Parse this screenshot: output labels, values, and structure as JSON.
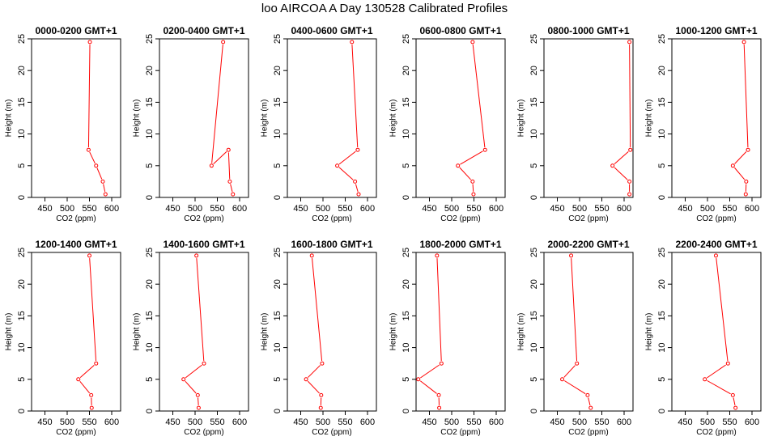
{
  "title": "loo AIRCOA A  Day 130528  Calibrated Profiles",
  "chart_data": [
    {
      "type": "line",
      "title": "0000-0200 GMT+1",
      "xlabel": "CO2 (ppm)",
      "ylabel": "Height (m)",
      "xlim": [
        420,
        620
      ],
      "ylim": [
        0,
        25
      ],
      "xticks": [
        450,
        500,
        550,
        600
      ],
      "yticks": [
        0,
        5,
        10,
        15,
        20,
        25
      ],
      "grid": false,
      "series": [
        {
          "color": "#ff0000",
          "x": [
            586,
            580,
            565,
            548,
            551
          ],
          "y": [
            0.5,
            2.5,
            5,
            7.5,
            24.5
          ]
        }
      ]
    },
    {
      "type": "line",
      "title": "0200-0400 GMT+1",
      "xlabel": "CO2 (ppm)",
      "ylabel": "Height (m)",
      "xlim": [
        420,
        620
      ],
      "ylim": [
        0,
        25
      ],
      "xticks": [
        450,
        500,
        550,
        600
      ],
      "yticks": [
        0,
        5,
        10,
        15,
        20,
        25
      ],
      "grid": false,
      "series": [
        {
          "color": "#ff0000",
          "x": [
            585,
            578,
            575,
            537,
            563
          ],
          "y": [
            0.5,
            2.5,
            7.5,
            5,
            24.5
          ]
        }
      ]
    },
    {
      "type": "line",
      "title": "0400-0600 GMT+1",
      "xlabel": "CO2 (ppm)",
      "ylabel": "Height (m)",
      "xlim": [
        420,
        620
      ],
      "ylim": [
        0,
        25
      ],
      "xticks": [
        450,
        500,
        550,
        600
      ],
      "yticks": [
        0,
        5,
        10,
        15,
        20,
        25
      ],
      "grid": false,
      "series": [
        {
          "color": "#ff0000",
          "x": [
            580,
            572,
            532,
            578,
            565
          ],
          "y": [
            0.5,
            2.5,
            5,
            7.5,
            24.5
          ]
        }
      ]
    },
    {
      "type": "line",
      "title": "0600-0800 GMT+1",
      "xlabel": "CO2 (ppm)",
      "ylabel": "Height (m)",
      "xlim": [
        420,
        620
      ],
      "ylim": [
        0,
        25
      ],
      "xticks": [
        450,
        500,
        550,
        600
      ],
      "yticks": [
        0,
        5,
        10,
        15,
        20,
        25
      ],
      "grid": false,
      "series": [
        {
          "color": "#ff0000",
          "x": [
            549,
            547,
            514,
            575,
            547
          ],
          "y": [
            0.5,
            2.5,
            5,
            7.5,
            24.5
          ]
        }
      ]
    },
    {
      "type": "line",
      "title": "0800-1000 GMT+1",
      "xlabel": "CO2 (ppm)",
      "ylabel": "Height (m)",
      "xlim": [
        420,
        620
      ],
      "ylim": [
        0,
        25
      ],
      "xticks": [
        450,
        500,
        550,
        600
      ],
      "yticks": [
        0,
        5,
        10,
        15,
        20,
        25
      ],
      "grid": false,
      "series": [
        {
          "color": "#ff0000",
          "x": [
            612,
            612,
            574,
            614,
            612
          ],
          "y": [
            0.5,
            2.5,
            5,
            7.5,
            24.5
          ]
        }
      ]
    },
    {
      "type": "line",
      "title": "1000-1200 GMT+1",
      "xlabel": "CO2 (ppm)",
      "ylabel": "Height (m)",
      "xlim": [
        420,
        620
      ],
      "ylim": [
        0,
        25
      ],
      "xticks": [
        450,
        500,
        550,
        600
      ],
      "yticks": [
        0,
        5,
        10,
        15,
        20,
        25
      ],
      "grid": false,
      "series": [
        {
          "color": "#ff0000",
          "x": [
            586,
            587,
            557,
            591,
            582
          ],
          "y": [
            0.5,
            2.5,
            5,
            7.5,
            24.5
          ]
        }
      ]
    },
    {
      "type": "line",
      "title": "1200-1400 GMT+1",
      "xlabel": "CO2 (ppm)",
      "ylabel": "Height (m)",
      "xlim": [
        420,
        620
      ],
      "ylim": [
        0,
        25
      ],
      "xticks": [
        450,
        500,
        550,
        600
      ],
      "yticks": [
        0,
        5,
        10,
        15,
        20,
        25
      ],
      "grid": false,
      "series": [
        {
          "color": "#ff0000",
          "x": [
            555,
            554,
            525,
            565,
            550
          ],
          "y": [
            0.5,
            2.5,
            5,
            7.5,
            24.5
          ]
        }
      ]
    },
    {
      "type": "line",
      "title": "1400-1600 GMT+1",
      "xlabel": "CO2 (ppm)",
      "ylabel": "Height (m)",
      "xlim": [
        420,
        620
      ],
      "ylim": [
        0,
        25
      ],
      "xticks": [
        450,
        500,
        550,
        600
      ],
      "yticks": [
        0,
        5,
        10,
        15,
        20,
        25
      ],
      "grid": false,
      "series": [
        {
          "color": "#ff0000",
          "x": [
            508,
            506,
            474,
            520,
            503
          ],
          "y": [
            0.5,
            2.5,
            5,
            7.5,
            24.5
          ]
        }
      ]
    },
    {
      "type": "line",
      "title": "1600-1800 GMT+1",
      "xlabel": "CO2 (ppm)",
      "ylabel": "Height (m)",
      "xlim": [
        420,
        620
      ],
      "ylim": [
        0,
        25
      ],
      "xticks": [
        450,
        500,
        550,
        600
      ],
      "yticks": [
        0,
        5,
        10,
        15,
        20,
        25
      ],
      "grid": false,
      "series": [
        {
          "color": "#ff0000",
          "x": [
            495,
            496,
            462,
            498,
            475
          ],
          "y": [
            0.5,
            2.5,
            5,
            7.5,
            24.5
          ]
        }
      ]
    },
    {
      "type": "line",
      "title": "1800-2000 GMT+1",
      "xlabel": "CO2 (ppm)",
      "ylabel": "Height (m)",
      "xlim": [
        420,
        620
      ],
      "ylim": [
        0,
        25
      ],
      "xticks": [
        450,
        500,
        550,
        600
      ],
      "yticks": [
        0,
        5,
        10,
        15,
        20,
        25
      ],
      "grid": false,
      "series": [
        {
          "color": "#ff0000",
          "x": [
            472,
            471,
            425,
            477,
            467
          ],
          "y": [
            0.5,
            2.5,
            5,
            7.5,
            24.5
          ]
        }
      ]
    },
    {
      "type": "line",
      "title": "2000-2200 GMT+1",
      "xlabel": "CO2 (ppm)",
      "ylabel": "Height (m)",
      "xlim": [
        420,
        620
      ],
      "ylim": [
        0,
        25
      ],
      "xticks": [
        450,
        500,
        550,
        600
      ],
      "yticks": [
        0,
        5,
        10,
        15,
        20,
        25
      ],
      "grid": false,
      "series": [
        {
          "color": "#ff0000",
          "x": [
            525,
            518,
            461,
            494,
            481
          ],
          "y": [
            0.5,
            2.5,
            5,
            7.5,
            24.5
          ]
        }
      ]
    },
    {
      "type": "line",
      "title": "2200-2400 GMT+1",
      "xlabel": "CO2 (ppm)",
      "ylabel": "Height (m)",
      "xlim": [
        420,
        620
      ],
      "ylim": [
        0,
        25
      ],
      "xticks": [
        450,
        500,
        550,
        600
      ],
      "yticks": [
        0,
        5,
        10,
        15,
        20,
        25
      ],
      "grid": false,
      "series": [
        {
          "color": "#ff0000",
          "x": [
            563,
            557,
            494,
            546,
            519
          ],
          "y": [
            0.5,
            2.5,
            5,
            7.5,
            24.5
          ]
        }
      ]
    }
  ]
}
